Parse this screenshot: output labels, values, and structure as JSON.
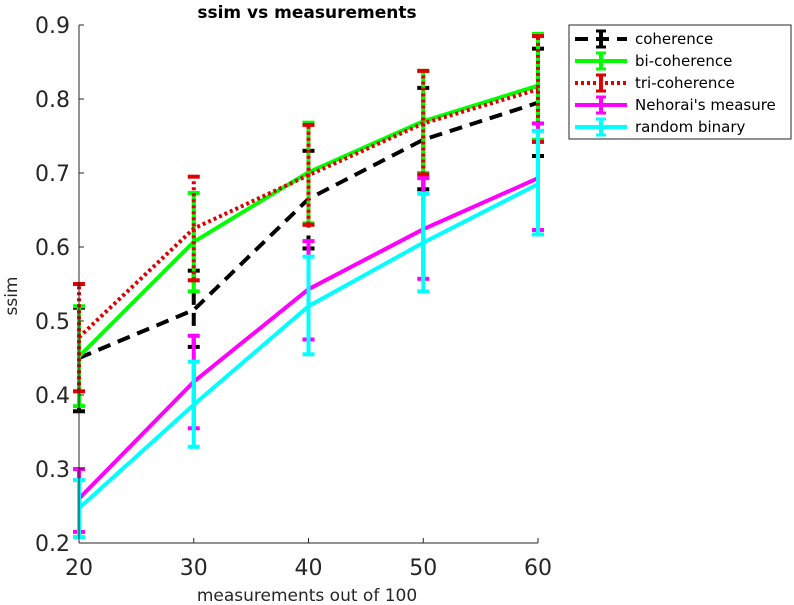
{
  "chart_data": {
    "type": "line",
    "title": "ssim vs measurements",
    "xlabel": "measurements out of 100",
    "ylabel": "ssim",
    "x": [
      20,
      30,
      40,
      50,
      60
    ],
    "xlim": [
      20,
      60
    ],
    "ylim": [
      0.2,
      0.9
    ],
    "xticks": [
      "20",
      "30",
      "40",
      "50",
      "60"
    ],
    "yticks": [
      "0.2",
      "0.3",
      "0.4",
      "0.5",
      "0.6",
      "0.7",
      "0.8",
      "0.9"
    ],
    "grid": false,
    "legend_position": "top-right (outside axes)",
    "series": [
      {
        "name": "coherence",
        "color": "#000000",
        "style": "dashed",
        "values": [
          0.45,
          0.515,
          0.665,
          0.745,
          0.795
        ],
        "err_low": [
          0.378,
          0.465,
          0.598,
          0.678,
          0.723
        ],
        "err_high": [
          0.518,
          0.568,
          0.73,
          0.815,
          0.868
        ]
      },
      {
        "name": "bi-coherence",
        "color": "#00ff00",
        "style": "solid",
        "values": [
          0.452,
          0.607,
          0.701,
          0.77,
          0.818
        ],
        "err_low": [
          0.385,
          0.54,
          0.632,
          0.7,
          0.745
        ],
        "err_high": [
          0.52,
          0.673,
          0.768,
          0.838,
          0.888
        ]
      },
      {
        "name": "tri-coherence",
        "color": "#e00000",
        "style": "dotted",
        "values": [
          0.478,
          0.625,
          0.697,
          0.767,
          0.813
        ],
        "err_low": [
          0.405,
          0.555,
          0.63,
          0.698,
          0.742
        ],
        "err_high": [
          0.55,
          0.695,
          0.765,
          0.838,
          0.885
        ]
      },
      {
        "name": "Nehorai's measure",
        "color": "#ff00ff",
        "style": "solid",
        "values": [
          0.26,
          0.418,
          0.543,
          0.624,
          0.693
        ],
        "err_low": [
          0.215,
          0.355,
          0.475,
          0.557,
          0.623
        ],
        "err_high": [
          0.3,
          0.48,
          0.608,
          0.693,
          0.767
        ]
      },
      {
        "name": "random binary",
        "color": "#00ffff",
        "style": "solid",
        "values": [
          0.247,
          0.387,
          0.52,
          0.606,
          0.685
        ],
        "err_low": [
          0.208,
          0.33,
          0.455,
          0.54,
          0.617
        ],
        "err_high": [
          0.285,
          0.445,
          0.587,
          0.672,
          0.757
        ]
      }
    ]
  }
}
